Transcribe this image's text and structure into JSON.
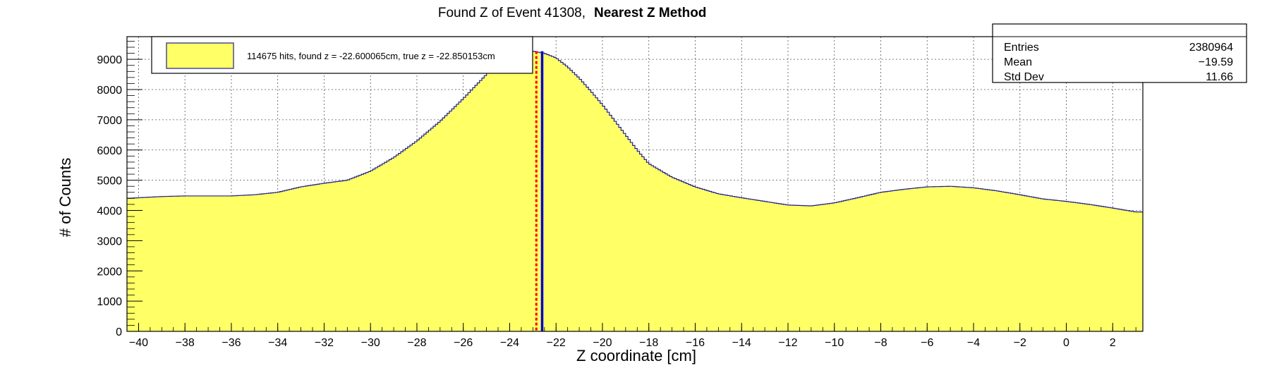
{
  "title": {
    "main": "Found Z of Event 41308,",
    "method": "Nearest Z Method"
  },
  "legend": {
    "entry": "114675 hits, found z = -22.600065cm, true z = -22.850153cm",
    "fill_color": "#ffff66"
  },
  "stats": {
    "rows": [
      {
        "label": "Entries",
        "value": "2380964"
      },
      {
        "label": "Mean",
        "value": "−19.59"
      },
      {
        "label": "Std Dev",
        "value": "11.66"
      }
    ]
  },
  "colors": {
    "hist_fill": "#ffff66",
    "hist_line": "#1f1f8f",
    "found_line": "#0000cc",
    "true_line": "#ff0000",
    "grid": "#555555"
  },
  "chart_data": {
    "type": "area",
    "title": "Found Z of Event 41308,   Nearest Z Method",
    "xlabel": "Z coordinate [cm]",
    "ylabel": "# of Counts",
    "xlim": [
      -40.5,
      3.3
    ],
    "ylim": [
      0,
      9750
    ],
    "grid": true,
    "legend_position": "top-left",
    "x_ticks": [
      -40,
      -38,
      -36,
      -34,
      -32,
      -30,
      -28,
      -26,
      -24,
      -22,
      -20,
      -18,
      -16,
      -14,
      -12,
      -10,
      -8,
      -6,
      -4,
      -2,
      0,
      2
    ],
    "y_ticks": [
      0,
      1000,
      2000,
      3000,
      4000,
      5000,
      6000,
      7000,
      8000,
      9000
    ],
    "series": [
      {
        "x": [
          -40.5,
          -40.0,
          -39.0,
          -38.0,
          -37.0,
          -36.0,
          -35.0,
          -34.0,
          -33.0,
          -32.0,
          -31.0,
          -30.0,
          -29.0,
          -28.0,
          -27.0,
          -26.0,
          -25.0,
          -24.5,
          -24.0,
          -23.5,
          -23.0,
          -22.5,
          -22.0,
          -21.5,
          -21.0,
          -20.5,
          -20.0,
          -19.5,
          -19.0,
          -18.5,
          -18.0,
          -17.0,
          -16.0,
          -15.0,
          -14.0,
          -13.0,
          -12.0,
          -11.0,
          -10.0,
          -9.0,
          -8.0,
          -7.0,
          -6.0,
          -5.0,
          -4.0,
          -3.0,
          -2.0,
          -1.0,
          0.0,
          1.0,
          2.0,
          3.0,
          3.2
        ],
        "values": [
          4400,
          4420,
          4460,
          4480,
          4480,
          4480,
          4520,
          4600,
          4780,
          4900,
          5000,
          5300,
          5750,
          6300,
          6950,
          7700,
          8500,
          8900,
          9150,
          9250,
          9270,
          9200,
          9050,
          8750,
          8380,
          7950,
          7500,
          7000,
          6500,
          6000,
          5550,
          5100,
          4780,
          4550,
          4420,
          4300,
          4180,
          4150,
          4250,
          4420,
          4600,
          4700,
          4780,
          4800,
          4750,
          4650,
          4520,
          4380,
          4300,
          4200,
          4080,
          3950,
          3950
        ]
      }
    ],
    "markers": [
      {
        "label": "found z",
        "x": -22.600065,
        "color": "#0000cc"
      },
      {
        "label": "true z",
        "x": -22.850153,
        "color": "#ff0000"
      }
    ]
  }
}
